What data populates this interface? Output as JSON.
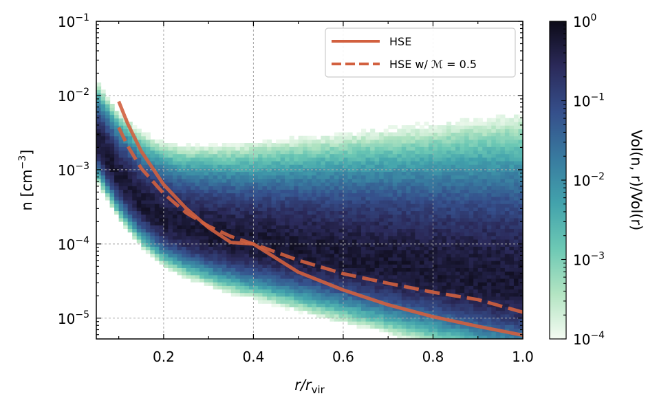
{
  "chart_data": {
    "type": "heatmap",
    "xlabel_main": "r/r",
    "xlabel_sub": "vir",
    "ylabel_main": "n [cm",
    "ylabel_unit_close": "]",
    "ylabel_exp": "−3",
    "xlim": [
      0.05,
      1.0
    ],
    "ylim_log10": [
      -5.28,
      -1
    ],
    "yscale": "log",
    "grid": true,
    "legend_position": "top-right",
    "x_tick_labels": [
      "0.2",
      "0.4",
      "0.6",
      "0.8",
      "1.0"
    ],
    "x_tick_values": [
      0.2,
      0.4,
      0.6,
      0.8,
      1.0
    ],
    "y_tick_base": "10",
    "y_tick_exps": [
      "−1",
      "−2",
      "−3",
      "−4",
      "−5"
    ],
    "y_tick_values_log10": [
      -1,
      -2,
      -3,
      -4,
      -5
    ],
    "colorbar": {
      "label": "Vol(n, r)/Vol(r)",
      "scale": "log",
      "range_log10": [
        -4,
        0
      ],
      "tick_base": "10",
      "tick_exps": [
        "0",
        "−1",
        "−2",
        "−3",
        "−4"
      ],
      "tick_values_log10": [
        0,
        -1,
        -2,
        -3,
        -4
      ],
      "colors": [
        "#f4fbf2",
        "#b2e4c2",
        "#6cc8b4",
        "#42a2ac",
        "#387a9f",
        "#354f8b",
        "#2b2a5a",
        "#0c0a17"
      ]
    },
    "density_ridge": {
      "x": [
        0.05,
        0.1,
        0.15,
        0.2,
        0.25,
        0.3,
        0.35,
        0.4,
        0.45,
        0.5,
        0.55,
        0.6,
        0.65,
        0.7,
        0.75,
        0.8,
        0.85,
        0.9,
        0.95,
        1.0
      ],
      "log10_n": [
        -2.6,
        -3.1,
        -3.45,
        -3.68,
        -3.8,
        -3.88,
        -3.95,
        -4.0,
        -4.05,
        -4.1,
        -4.15,
        -4.2,
        -4.25,
        -4.3,
        -4.35,
        -4.4,
        -4.45,
        -4.5,
        -4.55,
        -4.6
      ]
    },
    "series": [
      {
        "name": "HSE",
        "style": "solid",
        "color": "#d2603f",
        "x": [
          0.1,
          0.12,
          0.15,
          0.2,
          0.25,
          0.3,
          0.35,
          0.4,
          0.5,
          0.6,
          0.7,
          0.8,
          0.9,
          1.0
        ],
        "log10_n": [
          -2.08,
          -2.38,
          -2.75,
          -3.2,
          -3.52,
          -3.78,
          -3.98,
          -4.0,
          -4.38,
          -4.62,
          -4.82,
          -4.98,
          -5.11,
          -5.23
        ]
      },
      {
        "name": "HSE w/ ℳ = 0.5",
        "style": "dashed",
        "color": "#d2603f",
        "x": [
          0.1,
          0.12,
          0.15,
          0.2,
          0.25,
          0.3,
          0.35,
          0.4,
          0.5,
          0.6,
          0.7,
          0.8,
          0.9,
          1.0
        ],
        "log10_n": [
          -2.43,
          -2.68,
          -2.98,
          -3.32,
          -3.58,
          -3.76,
          -3.9,
          -4.0,
          -4.22,
          -4.4,
          -4.53,
          -4.65,
          -4.75,
          -4.92
        ]
      }
    ]
  }
}
